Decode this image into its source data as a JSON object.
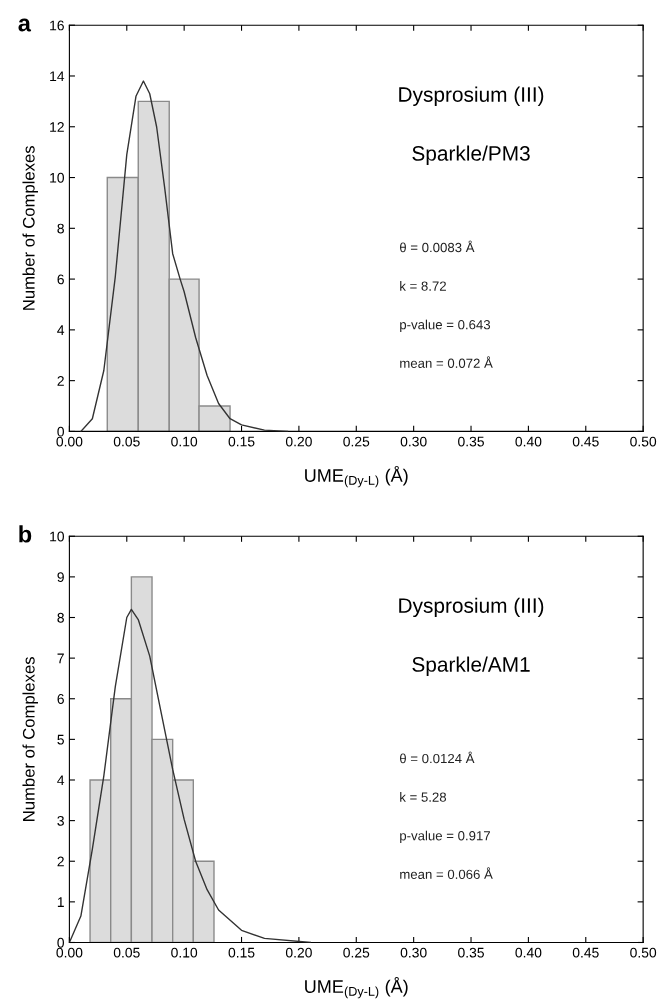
{
  "chart_data": [
    {
      "type": "histogram",
      "title": "a",
      "xlabel": "UME$_{(Dy-L)}$ (Å)",
      "ylabel": "Number of Complexes",
      "xlim": [
        0,
        0.5
      ],
      "ylim": [
        0,
        16
      ],
      "xticks": [
        {
          "value": 0,
          "label": "0.00"
        },
        0.05,
        {
          "value": 0.1,
          "label": "0.10"
        },
        0.15,
        {
          "value": 0.2,
          "label": "0.20"
        },
        0.25,
        {
          "value": 0.3,
          "label": "0.30"
        },
        0.35,
        {
          "value": 0.4,
          "label": "0.40"
        },
        0.45,
        {
          "value": 0.5,
          "label": "0.50"
        }
      ],
      "yticks": [
        0,
        2,
        4,
        6,
        8,
        10,
        12,
        14,
        16
      ],
      "grid": false,
      "legend": false,
      "annotations": [
        "Dysprosium (III)",
        "Sparkle/PM3",
        "θ = 0.0083 Å",
        "k = 8.72",
        "p-value = 0.643",
        "mean = 0.072 Å"
      ],
      "series": [
        {
          "type": "histogram",
          "color": "#dcdcdc",
          "bins": [
            0.033,
            0.06,
            0.087,
            0.113,
            0.14
          ],
          "values": [
            10,
            13,
            6,
            1
          ]
        },
        {
          "type": "line",
          "color": "#333333",
          "x": [
            0.01,
            0.02,
            0.03,
            0.04,
            0.05,
            0.058,
            0.0645,
            0.07,
            0.076,
            0.083,
            0.09,
            0.0965,
            0.1,
            0.11,
            0.12,
            0.13,
            0.14,
            0.15,
            0.17,
            0.19
          ],
          "values": [
            0,
            0.5,
            2.4,
            6.1,
            10.9,
            13.2,
            13.8,
            13.3,
            12.0,
            9.6,
            7.0,
            6.0,
            5.5,
            3.7,
            2.2,
            1.1,
            0.5,
            0.26,
            0.05,
            0
          ]
        }
      ]
    },
    {
      "type": "histogram",
      "title": "b",
      "xlabel": "UME$_{(Dy-L)}$ (Å)",
      "ylabel": "Number of Complexes",
      "xlim": [
        0,
        0.5
      ],
      "ylim": [
        0,
        10
      ],
      "xticks": [
        {
          "value": 0,
          "label": "0.00"
        },
        0.05,
        {
          "value": 0.1,
          "label": "0.10"
        },
        0.15,
        {
          "value": 0.2,
          "label": "0.20"
        },
        0.25,
        {
          "value": 0.3,
          "label": "0.30"
        },
        0.35,
        {
          "value": 0.4,
          "label": "0.40"
        },
        0.45,
        {
          "value": 0.5,
          "label": "0.50"
        }
      ],
      "yticks": [
        0,
        1,
        2,
        3,
        4,
        5,
        6,
        7,
        8,
        9,
        10
      ],
      "grid": false,
      "legend": false,
      "annotations": [
        "Dysprosium (III)",
        "Sparkle/AM1",
        "θ = 0.0124 Å",
        "k = 5.28",
        "p-value = 0.917",
        "mean = 0.066 Å"
      ],
      "series": [
        {
          "type": "histogram",
          "color": "#dcdcdc",
          "bins": [
            0.018,
            0.036,
            0.054,
            0.072,
            0.09,
            0.108,
            0.126
          ],
          "values": [
            4,
            6,
            9,
            5,
            4,
            2
          ]
        },
        {
          "type": "line",
          "color": "#333333",
          "x": [
            0.0,
            0.01,
            0.02,
            0.03,
            0.04,
            0.05,
            0.054,
            0.06,
            0.07,
            0.08,
            0.09,
            0.1,
            0.11,
            0.12,
            0.13,
            0.15,
            0.17,
            0.21
          ],
          "values": [
            0,
            0.65,
            2.3,
            4.1,
            6.3,
            8.0,
            8.2,
            7.95,
            7.05,
            5.65,
            4.26,
            3.03,
            2.0,
            1.3,
            0.8,
            0.3,
            0.1,
            0
          ]
        }
      ]
    }
  ]
}
